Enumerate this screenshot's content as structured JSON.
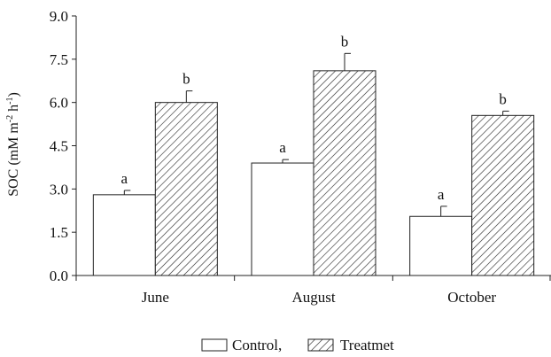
{
  "chart_data": {
    "type": "bar",
    "title": "",
    "xlabel": "",
    "ylabel": "SOC (mM m",
    "ylabel_sup1": "-2",
    "ylabel_mid": " h",
    "ylabel_sup2": "-1",
    "ylabel_end": ")",
    "ylim": [
      0,
      9.0
    ],
    "yticks": [
      "0.0",
      "1.5",
      "3.0",
      "4.5",
      "6.0",
      "7.5",
      "9.0"
    ],
    "categories": [
      "June",
      "August",
      "October"
    ],
    "series": [
      {
        "name": "Control,",
        "values": [
          2.8,
          3.9,
          2.05
        ],
        "errors": [
          0.15,
          0.12,
          0.35
        ],
        "significance": [
          "a",
          "a",
          "a"
        ],
        "fill": "none"
      },
      {
        "name": "Treatmet",
        "values": [
          6.0,
          7.1,
          5.55
        ],
        "errors": [
          0.4,
          0.6,
          0.15
        ],
        "significance": [
          "b",
          "b",
          "b"
        ],
        "fill": "hatched"
      }
    ],
    "legend_position": "bottom-center",
    "grid": false
  }
}
